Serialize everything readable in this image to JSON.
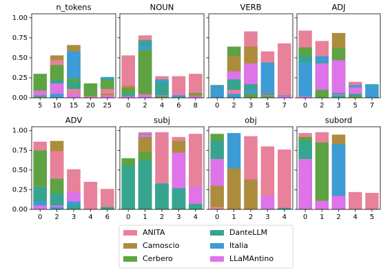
{
  "chart_data": [
    {
      "type": "bar",
      "title": "n_tokens",
      "categories": [
        "5",
        "10",
        "15",
        "20",
        "25"
      ],
      "ylim": [
        0,
        1.05
      ],
      "yticks": [
        {
          "value": 0,
          "label": "0.00"
        },
        {
          "value": 0.25,
          "label": "0.25"
        },
        {
          "value": 0.5,
          "label": "0.50"
        },
        {
          "value": 0.75,
          "label": "0.75"
        },
        {
          "value": 1,
          "label": "1.00"
        }
      ],
      "series": [
        {
          "name": "ANITA",
          "color": "#e8819a",
          "values": [
            0.09,
            0.47,
            0.11,
            0.02,
            0.11
          ]
        },
        {
          "name": "Camoscio",
          "color": "#ad8c3e",
          "values": [
            0.02,
            0.53,
            0.66,
            0.0,
            0.05
          ]
        },
        {
          "name": "Cerbero",
          "color": "#5ea343",
          "values": [
            0.3,
            0.41,
            0.24,
            0.18,
            0.22
          ]
        },
        {
          "name": "DanteLLM",
          "color": "#36a58f",
          "values": [
            0.03,
            0.22,
            0.2,
            0.0,
            0.24
          ]
        },
        {
          "name": "Italia",
          "color": "#3d9bd6",
          "values": [
            0.01,
            0.05,
            0.58,
            0.0,
            0.26
          ]
        },
        {
          "name": "LLaMAntino",
          "color": "#de73ea",
          "values": [
            0.08,
            0.18,
            0.05,
            0.0,
            0.03
          ]
        }
      ]
    },
    {
      "type": "bar",
      "title": "NOUN",
      "categories": [
        "0",
        "2",
        "4",
        "6",
        "8"
      ],
      "ylim": [
        0,
        1.05
      ],
      "yticks": [
        {
          "value": 0,
          "label": "0.00"
        },
        {
          "value": 0.25,
          "label": "0.25"
        },
        {
          "value": 0.5,
          "label": "0.50"
        },
        {
          "value": 0.75,
          "label": "0.75"
        },
        {
          "value": 1,
          "label": "1.00"
        }
      ],
      "series": [
        {
          "name": "ANITA",
          "color": "#e8819a",
          "values": [
            0.53,
            0.78,
            0.27,
            0.27,
            0.3
          ]
        },
        {
          "name": "Camoscio",
          "color": "#ad8c3e",
          "values": [
            0.15,
            0.05,
            0.02,
            0.01,
            0.04
          ]
        },
        {
          "name": "Cerbero",
          "color": "#5ea343",
          "values": [
            0.12,
            0.6,
            0.02,
            0.01,
            0.06
          ]
        },
        {
          "name": "DanteLLM",
          "color": "#36a58f",
          "values": [
            0.05,
            0.72,
            0.2,
            0.01,
            0.02
          ]
        },
        {
          "name": "Italia",
          "color": "#3d9bd6",
          "values": [
            0.03,
            0.65,
            0.23,
            0.03,
            0.02
          ]
        },
        {
          "name": "LLaMAntino",
          "color": "#de73ea",
          "values": [
            0.02,
            0.04,
            0.03,
            0.04,
            0.02
          ]
        }
      ]
    },
    {
      "type": "bar",
      "title": "VERB",
      "categories": [
        "0",
        "2",
        "3",
        "5",
        "7"
      ],
      "ylim": [
        0,
        1.05
      ],
      "yticks": [
        {
          "value": 0,
          "label": "0.00"
        },
        {
          "value": 0.25,
          "label": "0.25"
        },
        {
          "value": 0.5,
          "label": "0.50"
        },
        {
          "value": 0.75,
          "label": "0.75"
        },
        {
          "value": 1,
          "label": "1.00"
        }
      ],
      "series": [
        {
          "name": "ANITA",
          "color": "#e8819a",
          "values": [
            0.0,
            0.1,
            0.83,
            0.58,
            0.68
          ]
        },
        {
          "name": "Camoscio",
          "color": "#ad8c3e",
          "values": [
            0.0,
            0.52,
            0.64,
            0.06,
            0.0
          ]
        },
        {
          "name": "Cerbero",
          "color": "#5ea343",
          "values": [
            0.0,
            0.64,
            0.05,
            0.02,
            0.0
          ]
        },
        {
          "name": "DanteLLM",
          "color": "#36a58f",
          "values": [
            0.16,
            0.23,
            0.17,
            0.05,
            0.0
          ]
        },
        {
          "name": "Italia",
          "color": "#3d9bd6",
          "values": [
            0.14,
            0.05,
            0.1,
            0.44,
            0.03
          ]
        },
        {
          "name": "LLaMAntino",
          "color": "#de73ea",
          "values": [
            0.0,
            0.33,
            0.43,
            0.03,
            0.02
          ]
        }
      ]
    },
    {
      "type": "bar",
      "title": "ADJ",
      "categories": [
        "0",
        "2",
        "3",
        "5",
        "7"
      ],
      "ylim": [
        0,
        1.05
      ],
      "yticks": [
        {
          "value": 0,
          "label": "0.00"
        },
        {
          "value": 0.25,
          "label": "0.25"
        },
        {
          "value": 0.5,
          "label": "0.50"
        },
        {
          "value": 0.75,
          "label": "0.75"
        },
        {
          "value": 1,
          "label": "1.00"
        }
      ],
      "series": [
        {
          "name": "ANITA",
          "color": "#e8819a",
          "values": [
            0.84,
            0.71,
            0.04,
            0.2,
            0.0
          ]
        },
        {
          "name": "Camoscio",
          "color": "#ad8c3e",
          "values": [
            0.0,
            0.0,
            0.81,
            0.0,
            0.0
          ]
        },
        {
          "name": "Cerbero",
          "color": "#5ea343",
          "values": [
            0.63,
            0.1,
            0.62,
            0.02,
            0.0
          ]
        },
        {
          "name": "DanteLLM",
          "color": "#36a58f",
          "values": [
            0.53,
            0.44,
            0.03,
            0.05,
            0.17
          ]
        },
        {
          "name": "Italia",
          "color": "#3d9bd6",
          "values": [
            0.44,
            0.52,
            0.06,
            0.16,
            0.16
          ]
        },
        {
          "name": "LLaMAntino",
          "color": "#de73ea",
          "values": [
            0.02,
            0.43,
            0.47,
            0.13,
            0.0
          ]
        }
      ]
    },
    {
      "type": "bar",
      "title": "ADV",
      "categories": [
        "0",
        "2",
        "3",
        "4",
        "6"
      ],
      "ylim": [
        0,
        1.05
      ],
      "yticks": [
        {
          "value": 0,
          "label": "0.00"
        },
        {
          "value": 0.25,
          "label": "0.25"
        },
        {
          "value": 0.5,
          "label": "0.50"
        },
        {
          "value": 0.75,
          "label": "0.75"
        },
        {
          "value": 1,
          "label": "1.00"
        }
      ],
      "series": [
        {
          "name": "ANITA",
          "color": "#e8819a",
          "values": [
            0.86,
            0.74,
            0.51,
            0.35,
            0.26
          ]
        },
        {
          "name": "Camoscio",
          "color": "#ad8c3e",
          "values": [
            0.3,
            0.87,
            0.0,
            0.0,
            0.0
          ]
        },
        {
          "name": "Cerbero",
          "color": "#5ea343",
          "values": [
            0.75,
            0.39,
            0.0,
            0.0,
            0.0
          ]
        },
        {
          "name": "DanteLLM",
          "color": "#36a58f",
          "values": [
            0.29,
            0.2,
            0.05,
            0.0,
            0.03
          ]
        },
        {
          "name": "Italia",
          "color": "#3d9bd6",
          "values": [
            0.1,
            0.03,
            0.1,
            0.0,
            0.0
          ]
        },
        {
          "name": "LLaMAntino",
          "color": "#de73ea",
          "values": [
            0.05,
            0.05,
            0.22,
            0.0,
            0.0
          ]
        }
      ]
    },
    {
      "type": "bar",
      "title": "subj",
      "categories": [
        "0",
        "1",
        "2",
        "3",
        "4"
      ],
      "ylim": [
        0,
        1.05
      ],
      "yticks": [
        {
          "value": 0,
          "label": "0.00"
        },
        {
          "value": 0.25,
          "label": "0.25"
        },
        {
          "value": 0.5,
          "label": "0.50"
        },
        {
          "value": 0.75,
          "label": "0.75"
        },
        {
          "value": 1,
          "label": "1.00"
        }
      ],
      "series": [
        {
          "name": "ANITA",
          "color": "#e8819a",
          "values": [
            0.0,
            0.98,
            0.98,
            0.92,
            0.96
          ]
        },
        {
          "name": "Camoscio",
          "color": "#ad8c3e",
          "values": [
            0.0,
            0.92,
            0.0,
            0.87,
            0.0
          ]
        },
        {
          "name": "Cerbero",
          "color": "#5ea343",
          "values": [
            0.65,
            0.73,
            0.0,
            0.0,
            0.0
          ]
        },
        {
          "name": "DanteLLM",
          "color": "#36a58f",
          "values": [
            0.55,
            0.62,
            0.32,
            0.26,
            0.07
          ]
        },
        {
          "name": "Italia",
          "color": "#3d9bd6",
          "values": [
            0.0,
            0.96,
            0.33,
            0.27,
            0.0
          ]
        },
        {
          "name": "LLaMAntino",
          "color": "#de73ea",
          "values": [
            0.0,
            0.95,
            0.0,
            0.72,
            0.28
          ]
        }
      ]
    },
    {
      "type": "bar",
      "title": "obj",
      "categories": [
        "0",
        "1",
        "2",
        "3",
        "4"
      ],
      "ylim": [
        0,
        1.05
      ],
      "yticks": [
        {
          "value": 0,
          "label": "0.00"
        },
        {
          "value": 0.25,
          "label": "0.25"
        },
        {
          "value": 0.5,
          "label": "0.50"
        },
        {
          "value": 0.75,
          "label": "0.75"
        },
        {
          "value": 1,
          "label": "1.00"
        }
      ],
      "series": [
        {
          "name": "ANITA",
          "color": "#e8819a",
          "values": [
            0.03,
            0.0,
            0.93,
            0.8,
            0.76
          ]
        },
        {
          "name": "Camoscio",
          "color": "#ad8c3e",
          "values": [
            0.3,
            0.52,
            0.38,
            0.0,
            0.0
          ]
        },
        {
          "name": "Cerbero",
          "color": "#5ea343",
          "values": [
            0.96,
            0.0,
            0.0,
            0.0,
            0.0
          ]
        },
        {
          "name": "DanteLLM",
          "color": "#36a58f",
          "values": [
            0.87,
            0.0,
            0.0,
            0.0,
            0.02
          ]
        },
        {
          "name": "Italia",
          "color": "#3d9bd6",
          "values": [
            0.0,
            0.97,
            0.0,
            0.0,
            0.0
          ]
        },
        {
          "name": "LLaMAntino",
          "color": "#de73ea",
          "values": [
            0.64,
            0.0,
            0.0,
            0.17,
            0.0
          ]
        }
      ]
    },
    {
      "type": "bar",
      "title": "subord",
      "categories": [
        "0",
        "1",
        "2",
        "4",
        "5"
      ],
      "ylim": [
        0,
        1.05
      ],
      "yticks": [
        {
          "value": 0,
          "label": "0.00"
        },
        {
          "value": 0.25,
          "label": "0.25"
        },
        {
          "value": 0.5,
          "label": "0.50"
        },
        {
          "value": 0.75,
          "label": "0.75"
        },
        {
          "value": 1,
          "label": "1.00"
        }
      ],
      "series": [
        {
          "name": "ANITA",
          "color": "#e8819a",
          "values": [
            0.97,
            0.98,
            0.0,
            0.22,
            0.21
          ]
        },
        {
          "name": "Camoscio",
          "color": "#ad8c3e",
          "values": [
            0.0,
            0.0,
            0.95,
            0.0,
            0.0
          ]
        },
        {
          "name": "Cerbero",
          "color": "#5ea343",
          "values": [
            0.92,
            0.85,
            0.0,
            0.0,
            0.0
          ]
        },
        {
          "name": "DanteLLM",
          "color": "#36a58f",
          "values": [
            0.87,
            0.0,
            0.83,
            0.0,
            0.0
          ]
        },
        {
          "name": "Italia",
          "color": "#3d9bd6",
          "values": [
            0.0,
            0.0,
            0.82,
            0.0,
            0.0
          ]
        },
        {
          "name": "LLaMAntino",
          "color": "#de73ea",
          "values": [
            0.64,
            0.11,
            0.17,
            0.0,
            0.0
          ]
        }
      ]
    }
  ]
}
